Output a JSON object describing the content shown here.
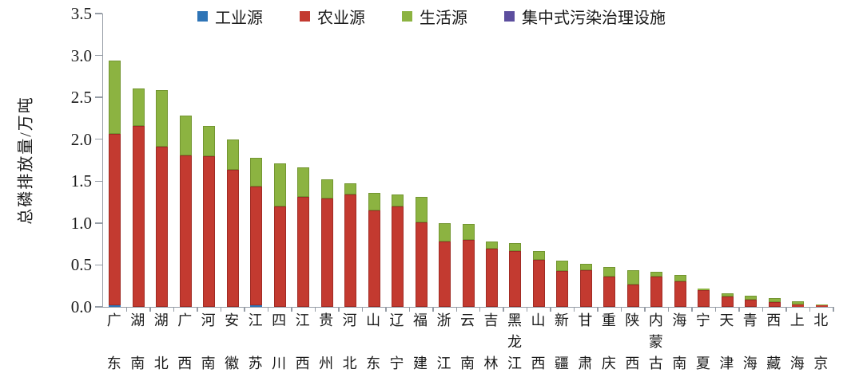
{
  "chart_data": {
    "type": "bar",
    "stacked": true,
    "title": "",
    "xlabel": "",
    "ylabel": "总磷排放量/万吨",
    "unit": "万吨",
    "ylim": [
      0,
      3.5
    ],
    "yticks": [
      "0.0",
      "0.5",
      "1.0",
      "1.5",
      "2.0",
      "2.5",
      "3.0",
      "3.5"
    ],
    "grid": false,
    "legend_position": "top",
    "categories": [
      "广东",
      "湖南",
      "湖北",
      "广西",
      "河南",
      "安徽",
      "江苏",
      "四川",
      "江西",
      "贵州",
      "河北",
      "山东",
      "辽宁",
      "福建",
      "浙江",
      "云南",
      "吉林",
      "黑龙江",
      "山西",
      "新疆",
      "甘肃",
      "重庆",
      "陕西",
      "内蒙古",
      "海南",
      "宁夏",
      "天津",
      "青海",
      "西藏",
      "上海",
      "北京"
    ],
    "series": [
      {
        "name": "工业源",
        "color": "#2e74b6",
        "border": "#1f5c96",
        "values": [
          0.02,
          0,
          0,
          0,
          0,
          0,
          0.02,
          0,
          0,
          0,
          0,
          0,
          0,
          0,
          0,
          0,
          0,
          0,
          0,
          0,
          0,
          0,
          0,
          0,
          0,
          0,
          0,
          0,
          0,
          0,
          0
        ]
      },
      {
        "name": "农业源",
        "color": "#c33a30",
        "border": "#a02b24",
        "values": [
          2.04,
          2.16,
          1.91,
          1.81,
          1.8,
          1.64,
          1.42,
          1.2,
          1.31,
          1.29,
          1.34,
          1.15,
          1.2,
          1.01,
          0.78,
          0.8,
          0.69,
          0.67,
          0.56,
          0.43,
          0.44,
          0.36,
          0.27,
          0.36,
          0.3,
          0.2,
          0.12,
          0.09,
          0.06,
          0.03,
          0.015
        ]
      },
      {
        "name": "生活源",
        "color": "#8cb341",
        "border": "#739631",
        "values": [
          0.88,
          0.45,
          0.68,
          0.47,
          0.36,
          0.36,
          0.34,
          0.51,
          0.35,
          0.23,
          0.13,
          0.21,
          0.14,
          0.3,
          0.22,
          0.19,
          0.09,
          0.09,
          0.11,
          0.12,
          0.07,
          0.12,
          0.17,
          0.06,
          0.08,
          0.02,
          0.04,
          0.04,
          0.045,
          0.04,
          0.015
        ]
      },
      {
        "name": "集中式污染治理设施",
        "color": "#5c4e9e",
        "border": "#483c85",
        "values": [
          0,
          0,
          0,
          0,
          0,
          0,
          0,
          0,
          0,
          0,
          0,
          0,
          0,
          0,
          0,
          0,
          0,
          0,
          0,
          0,
          0,
          0,
          0,
          0,
          0,
          0,
          0,
          0,
          0,
          0,
          0
        ]
      }
    ]
  },
  "colors": {
    "axis": "#969da6",
    "text": "#1a1a1a",
    "background": "#ffffff"
  }
}
